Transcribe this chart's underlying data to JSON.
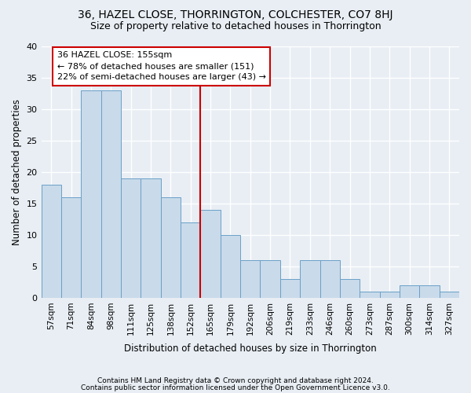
{
  "title": "36, HAZEL CLOSE, THORRINGTON, COLCHESTER, CO7 8HJ",
  "subtitle": "Size of property relative to detached houses in Thorrington",
  "xlabel": "Distribution of detached houses by size in Thorrington",
  "ylabel": "Number of detached properties",
  "categories": [
    "57sqm",
    "71sqm",
    "84sqm",
    "98sqm",
    "111sqm",
    "125sqm",
    "138sqm",
    "152sqm",
    "165sqm",
    "179sqm",
    "192sqm",
    "206sqm",
    "219sqm",
    "233sqm",
    "246sqm",
    "260sqm",
    "273sqm",
    "287sqm",
    "300sqm",
    "314sqm",
    "327sqm"
  ],
  "values": [
    18,
    16,
    33,
    33,
    19,
    19,
    16,
    12,
    14,
    10,
    6,
    6,
    3,
    6,
    6,
    3,
    1,
    1,
    2,
    2,
    1
  ],
  "bar_color": "#c9daea",
  "bar_edge_color": "#6aa0c7",
  "vline_x_index": 8,
  "annotation_text": "36 HAZEL CLOSE: 155sqm\n← 78% of detached houses are smaller (151)\n22% of semi-detached houses are larger (43) →",
  "annotation_box_color": "#ffffff",
  "annotation_box_edge": "#cc0000",
  "vline_color": "#cc0000",
  "ylim": [
    0,
    40
  ],
  "yticks": [
    0,
    5,
    10,
    15,
    20,
    25,
    30,
    35,
    40
  ],
  "footnote1": "Contains HM Land Registry data © Crown copyright and database right 2024.",
  "footnote2": "Contains public sector information licensed under the Open Government Licence v3.0.",
  "bg_color": "#e8eef4",
  "plot_bg_color": "#e8eef4",
  "grid_color": "#ffffff"
}
